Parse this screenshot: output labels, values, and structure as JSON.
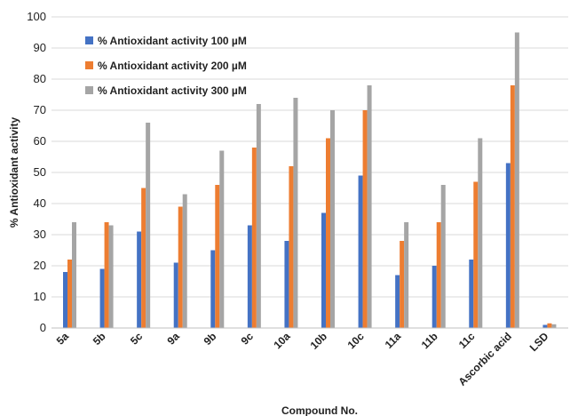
{
  "chart_data": {
    "type": "bar",
    "xlabel": "Compound No.",
    "ylabel": "% Antioxidant activity",
    "ylim": [
      0,
      100
    ],
    "yticks": [
      0,
      10,
      20,
      30,
      40,
      50,
      60,
      70,
      80,
      90,
      100
    ],
    "grid": "horizontal",
    "legend_position": "top-left",
    "categories": [
      "5a",
      "5b",
      "5c",
      "9a",
      "9b",
      "9c",
      "10a",
      "10b",
      "10c",
      "11a",
      "11b",
      "11c",
      "Ascorbic acid",
      "LSD"
    ],
    "series": [
      {
        "name": "% Antioxidant activity 100 µM",
        "color": "#4472C4",
        "values": [
          18,
          19,
          31,
          21,
          25,
          33,
          28,
          37,
          49,
          17,
          20,
          22,
          53,
          1.0
        ]
      },
      {
        "name": "% Antioxidant activity 200 µM",
        "color": "#ED7D31",
        "values": [
          22,
          34,
          45,
          39,
          46,
          58,
          52,
          61,
          70,
          28,
          34,
          47,
          78,
          1.5
        ]
      },
      {
        "name": "% Antioxidant activity 300 µM",
        "color": "#A5A5A5",
        "values": [
          34,
          33,
          66,
          43,
          57,
          72,
          74,
          70,
          78,
          34,
          46,
          61,
          95,
          1.2
        ]
      }
    ]
  }
}
